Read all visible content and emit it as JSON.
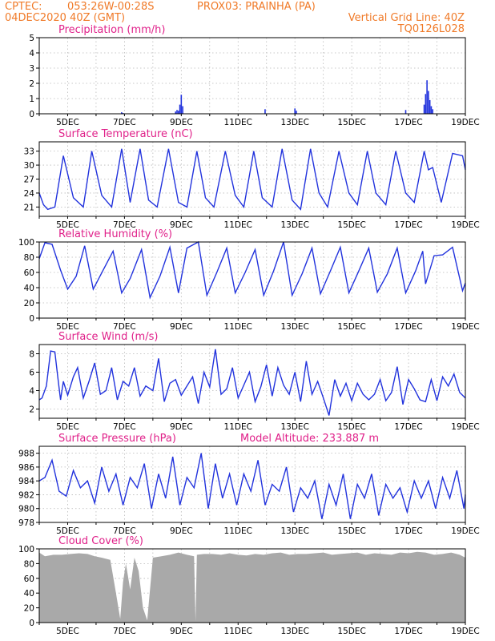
{
  "header": {
    "org": "CPTEC:",
    "coords": "053:26W-00:28S",
    "station": "PROX03: PRAINHA (PA)",
    "run": "04DEC2020 40Z (GMT)",
    "grid_note": "Vertical Grid Line: 40Z",
    "model": "TQ0126L028"
  },
  "colors": {
    "header": "#f07a28",
    "title": "#e0218a",
    "line": "#2233dd",
    "cloud": "#a9a9a9"
  },
  "x_ticks": [
    "5DEC",
    "7DEC",
    "9DEC",
    "11DEC",
    "13DEC",
    "15DEC",
    "17DEC",
    "19DEC"
  ],
  "chart_data": [
    {
      "type": "bar",
      "title": "Precipitation (mm/h)",
      "ylim": [
        0,
        5
      ],
      "yticks": [
        0,
        1,
        2,
        3,
        4,
        5
      ],
      "x_range_days": [
        4.0,
        19.0
      ],
      "x": [
        6.9,
        6.95,
        8.8,
        8.85,
        8.9,
        8.95,
        9.0,
        9.05,
        11.95,
        13.0,
        13.05,
        16.9,
        17.55,
        17.6,
        17.65,
        17.7,
        17.75,
        17.8,
        17.85
      ],
      "values": [
        0.1,
        0.05,
        0.15,
        0.25,
        0.2,
        0.6,
        1.25,
        0.5,
        0.3,
        0.35,
        0.2,
        0.25,
        0.6,
        1.3,
        2.2,
        1.5,
        0.9,
        0.5,
        0.3
      ]
    },
    {
      "type": "line",
      "title": "Surface Temperature (nC)",
      "ylim": [
        19,
        35
      ],
      "yticks": [
        21,
        24,
        27,
        30,
        33
      ],
      "x_range_days": [
        4.0,
        19.0
      ],
      "x": [
        4.0,
        4.15,
        4.3,
        4.55,
        4.85,
        5.2,
        5.55,
        5.85,
        6.2,
        6.55,
        6.9,
        7.2,
        7.55,
        7.85,
        8.15,
        8.55,
        8.9,
        9.2,
        9.55,
        9.85,
        10.15,
        10.55,
        10.9,
        11.2,
        11.55,
        11.85,
        12.2,
        12.55,
        12.9,
        13.2,
        13.55,
        13.85,
        14.15,
        14.55,
        14.9,
        15.2,
        15.55,
        15.85,
        16.2,
        16.55,
        16.9,
        17.2,
        17.55,
        17.7,
        17.85,
        18.15,
        18.55,
        18.9,
        19.0
      ],
      "values": [
        24.0,
        21.5,
        20.5,
        21.0,
        32.0,
        23.0,
        21.0,
        33.0,
        23.5,
        21.0,
        33.5,
        22.0,
        33.5,
        22.5,
        21.0,
        33.5,
        22.0,
        21.0,
        33.0,
        23.0,
        21.0,
        33.0,
        23.5,
        21.0,
        33.0,
        23.0,
        21.0,
        33.5,
        22.5,
        20.5,
        33.5,
        24.0,
        21.0,
        33.0,
        24.0,
        21.5,
        33.0,
        24.0,
        21.5,
        33.0,
        24.0,
        22.0,
        33.0,
        29.0,
        29.5,
        22.0,
        32.5,
        32.0,
        29.0
      ]
    },
    {
      "type": "line",
      "title": "Relative Humidity (%)",
      "ylim": [
        0,
        100
      ],
      "yticks": [
        0,
        20,
        40,
        60,
        80,
        100
      ],
      "x_range_days": [
        4.0,
        19.0
      ],
      "x": [
        4.0,
        4.2,
        4.45,
        4.75,
        5.0,
        5.3,
        5.6,
        5.9,
        6.25,
        6.6,
        6.9,
        7.2,
        7.6,
        7.9,
        8.25,
        8.6,
        8.9,
        9.2,
        9.6,
        9.9,
        10.25,
        10.6,
        10.9,
        11.25,
        11.6,
        11.9,
        12.25,
        12.6,
        12.9,
        13.25,
        13.6,
        13.9,
        14.25,
        14.6,
        14.9,
        15.25,
        15.6,
        15.9,
        16.25,
        16.6,
        16.9,
        17.25,
        17.5,
        17.6,
        17.9,
        18.2,
        18.55,
        18.9,
        19.0
      ],
      "values": [
        78.0,
        99.0,
        97.0,
        63.0,
        38.0,
        55.0,
        95.0,
        38.0,
        63.0,
        88.0,
        33.0,
        52.0,
        90.0,
        27.0,
        55.0,
        93.0,
        33.0,
        92.0,
        100.0,
        30.0,
        60.0,
        92.0,
        33.0,
        60.0,
        90.0,
        30.0,
        62.0,
        100.0,
        30.0,
        58.0,
        92.0,
        32.0,
        62.0,
        93.0,
        33.0,
        62.0,
        92.0,
        34.0,
        58.0,
        92.0,
        33.0,
        62.0,
        88.0,
        45.0,
        82.0,
        83.0,
        93.0,
        36.0,
        46.0
      ]
    },
    {
      "type": "line",
      "title": "Surface Wind (m/s)",
      "ylim": [
        1,
        9
      ],
      "yticks": [
        2,
        4,
        6,
        8
      ],
      "x_range_days": [
        4.0,
        19.0
      ],
      "x": [
        4.0,
        4.1,
        4.25,
        4.4,
        4.55,
        4.65,
        4.75,
        4.85,
        5.0,
        5.2,
        5.35,
        5.55,
        5.75,
        5.95,
        6.15,
        6.35,
        6.55,
        6.75,
        6.95,
        7.15,
        7.35,
        7.55,
        7.75,
        8.0,
        8.2,
        8.4,
        8.6,
        8.8,
        9.0,
        9.2,
        9.4,
        9.6,
        9.8,
        10.0,
        10.2,
        10.4,
        10.6,
        10.8,
        11.0,
        11.2,
        11.4,
        11.6,
        11.8,
        12.0,
        12.2,
        12.4,
        12.6,
        12.8,
        13.0,
        13.2,
        13.4,
        13.6,
        13.8,
        14.0,
        14.2,
        14.4,
        14.6,
        14.8,
        15.0,
        15.2,
        15.4,
        15.6,
        15.8,
        16.0,
        16.2,
        16.4,
        16.6,
        16.8,
        17.0,
        17.2,
        17.4,
        17.6,
        17.8,
        18.0,
        18.2,
        18.4,
        18.6,
        18.8,
        19.0
      ],
      "values": [
        3.0,
        3.2,
        4.5,
        8.3,
        8.2,
        5.5,
        3.0,
        5.0,
        3.5,
        5.5,
        6.5,
        3.2,
        5.0,
        7.0,
        3.6,
        4.0,
        6.5,
        3.0,
        5.0,
        4.5,
        6.5,
        3.4,
        4.5,
        4.0,
        7.5,
        2.8,
        4.8,
        5.2,
        3.5,
        4.5,
        5.5,
        2.6,
        6.0,
        4.4,
        8.5,
        3.6,
        4.2,
        6.5,
        3.2,
        4.6,
        6.0,
        2.8,
        4.4,
        6.8,
        3.4,
        6.5,
        4.6,
        3.6,
        6.0,
        2.8,
        7.2,
        3.6,
        5.0,
        3.2,
        1.3,
        5.2,
        3.4,
        4.8,
        2.9,
        4.8,
        3.6,
        3.0,
        3.6,
        5.2,
        2.9,
        3.8,
        6.6,
        2.5,
        5.2,
        4.2,
        3.0,
        2.8,
        5.2,
        2.9,
        5.5,
        4.5,
        5.8,
        3.8,
        3.2
      ]
    },
    {
      "type": "line",
      "title": "Surface Pressure (hPa)",
      "annotation": "Model Altitude: 233.887 m",
      "ylim": [
        978,
        989
      ],
      "yticks": [
        978,
        980,
        982,
        984,
        986,
        988
      ],
      "x_range_days": [
        4.0,
        19.0
      ],
      "x": [
        4.0,
        4.2,
        4.45,
        4.7,
        4.95,
        5.2,
        5.45,
        5.7,
        5.95,
        6.2,
        6.45,
        6.7,
        6.95,
        7.2,
        7.45,
        7.7,
        7.95,
        8.2,
        8.45,
        8.7,
        8.95,
        9.2,
        9.45,
        9.7,
        9.95,
        10.2,
        10.45,
        10.7,
        10.95,
        11.2,
        11.45,
        11.7,
        11.95,
        12.2,
        12.45,
        12.7,
        12.95,
        13.2,
        13.45,
        13.7,
        13.95,
        14.2,
        14.45,
        14.7,
        14.95,
        15.2,
        15.45,
        15.7,
        15.95,
        16.2,
        16.45,
        16.7,
        16.95,
        17.2,
        17.45,
        17.7,
        17.95,
        18.2,
        18.45,
        18.7,
        18.95,
        19.0
      ],
      "values": [
        984.0,
        984.5,
        987.0,
        982.5,
        981.8,
        985.5,
        983.0,
        984.0,
        980.8,
        986.0,
        982.5,
        985.0,
        980.5,
        984.5,
        983.0,
        986.5,
        980.0,
        985.0,
        981.5,
        987.5,
        980.5,
        984.5,
        983.0,
        988.0,
        980.0,
        986.5,
        981.5,
        985.0,
        980.5,
        985.0,
        982.5,
        987.0,
        980.5,
        983.5,
        982.5,
        986.0,
        979.5,
        983.0,
        981.5,
        984.0,
        978.5,
        983.5,
        980.5,
        985.0,
        978.5,
        983.5,
        981.5,
        985.0,
        979.0,
        983.5,
        981.5,
        983.0,
        979.5,
        984.0,
        981.5,
        984.0,
        980.0,
        984.5,
        981.5,
        985.5,
        980.0,
        982.0
      ]
    },
    {
      "type": "area",
      "title": "Cloud Cover (%)",
      "ylim": [
        0,
        100
      ],
      "yticks": [
        0,
        20,
        40,
        60,
        80,
        100
      ],
      "x_range_days": [
        4.0,
        19.0
      ],
      "x": [
        4.0,
        4.2,
        4.5,
        4.8,
        5.1,
        5.4,
        5.7,
        5.95,
        6.2,
        6.5,
        6.7,
        6.85,
        6.95,
        7.05,
        7.2,
        7.35,
        7.5,
        7.65,
        7.8,
        8.0,
        8.3,
        8.6,
        8.9,
        9.2,
        9.45,
        9.5,
        9.55,
        9.8,
        10.1,
        10.4,
        10.7,
        11.0,
        11.3,
        11.6,
        11.9,
        12.2,
        12.5,
        12.8,
        13.1,
        13.4,
        13.7,
        14.0,
        14.3,
        14.6,
        14.9,
        15.2,
        15.5,
        15.8,
        16.1,
        16.4,
        16.7,
        17.0,
        17.3,
        17.6,
        17.9,
        18.2,
        18.5,
        18.8,
        19.0
      ],
      "values": [
        95.0,
        90.0,
        92.0,
        92.0,
        93.0,
        94.0,
        93.0,
        90.0,
        88.0,
        85.0,
        40.0,
        5.0,
        55.0,
        80.0,
        45.0,
        88.0,
        70.0,
        20.0,
        3.0,
        88.0,
        90.0,
        92.0,
        95.0,
        92.0,
        90.0,
        2.0,
        92.0,
        93.0,
        93.0,
        92.0,
        94.0,
        92.0,
        91.0,
        93.0,
        92.0,
        94.0,
        95.0,
        92.0,
        93.0,
        93.0,
        94.0,
        95.0,
        92.0,
        93.0,
        94.0,
        95.0,
        92.0,
        94.0,
        93.0,
        92.0,
        95.0,
        94.0,
        96.0,
        95.0,
        92.0,
        93.0,
        95.0,
        92.0,
        88.0
      ]
    }
  ]
}
